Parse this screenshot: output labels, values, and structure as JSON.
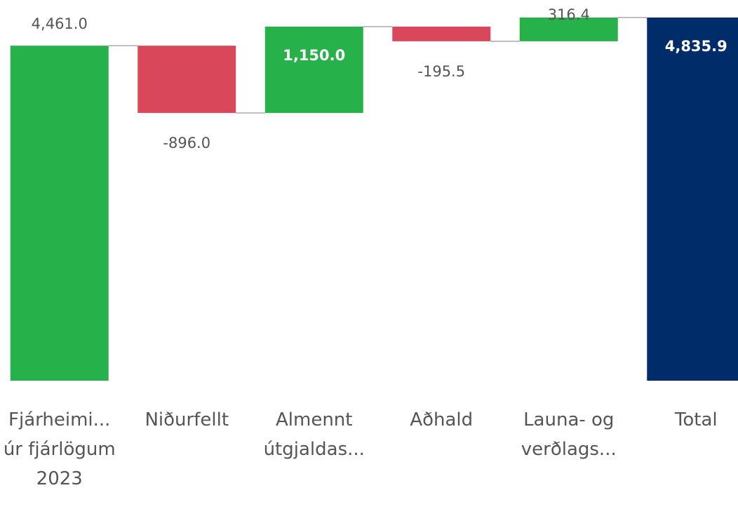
{
  "chart_data": {
    "type": "waterfall",
    "categories": [
      "Fjárheimi... úr fjárlögum 2023",
      "Niðurfellt",
      "Almennt útgjaldas...",
      "Aðhald",
      "Launa- og verðlags...",
      "Total"
    ],
    "values": [
      4461.0,
      -896.0,
      1150.0,
      -195.5,
      316.4,
      4835.9
    ],
    "value_labels": [
      "4,461.0",
      "-896.0",
      "1,150.0",
      "-195.5",
      "316.4",
      "4,835.9"
    ],
    "colors": {
      "increase": "#27b14a",
      "decrease": "#d9485a",
      "total": "#002d6a"
    }
  }
}
